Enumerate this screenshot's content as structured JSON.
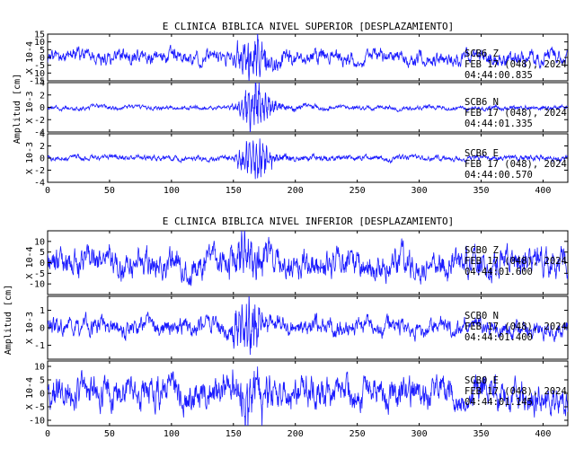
{
  "chart_data": [
    {
      "type": "line",
      "title": "E CLINICA BIBLICA NIVEL SUPERIOR [DESPLAZAMIENTO]",
      "ylabel": "Amplitud [cm]",
      "xlim": [
        0,
        420
      ],
      "x_ticks": [
        0,
        50,
        100,
        150,
        200,
        250,
        300,
        350,
        400
      ],
      "panels": [
        {
          "scale_label": "X 10-4",
          "ylim": [
            -15,
            15
          ],
          "y_ticks": [
            -15,
            -10,
            -5,
            0,
            5,
            10,
            15
          ],
          "info": [
            "SCB6   Z",
            "FEB 17 (048), 2024",
            "04:44:00.835"
          ],
          "series": {
            "duration": 420,
            "base_noise": 3.2,
            "burst_center": 165,
            "burst_width": 10,
            "burst_amp": 11,
            "coda_amp": 4
          }
        },
        {
          "scale_label": "X 10-3",
          "ylim": [
            -4,
            4
          ],
          "y_ticks": [
            -4,
            -2,
            0,
            2,
            4
          ],
          "info": [
            "SCB6   N",
            "FEB 17 (048), 2024",
            "04:44:01.335"
          ],
          "series": {
            "duration": 420,
            "base_noise": 0.25,
            "burst_center": 167,
            "burst_width": 8,
            "burst_amp": 3.4,
            "coda_amp": 0.9
          }
        },
        {
          "scale_label": "X 10-3",
          "ylim": [
            -4,
            4
          ],
          "y_ticks": [
            -4,
            -2,
            0,
            2,
            4
          ],
          "info": [
            "SCB6   E",
            "FEB 17 (048), 2024",
            "04:44:00.570"
          ],
          "series": {
            "duration": 420,
            "base_noise": 0.3,
            "burst_center": 167,
            "burst_width": 8,
            "burst_amp": 3.6,
            "coda_amp": 1.0
          }
        }
      ]
    },
    {
      "type": "line",
      "title": "E CLINICA BIBLICA NIVEL INFERIOR [DESPLAZAMIENTO]",
      "ylabel": "Amplitud [cm]",
      "xlim": [
        0,
        420
      ],
      "x_ticks": [
        0,
        50,
        100,
        150,
        200,
        250,
        300,
        350,
        400
      ],
      "panels": [
        {
          "scale_label": "X 10-4",
          "ylim": [
            -15,
            15
          ],
          "y_ticks": [
            -10,
            -5,
            0,
            5,
            10
          ],
          "info": [
            "SCB0   Z",
            "FEB 17 (048), 2024",
            "04:44:01.600"
          ],
          "series": {
            "duration": 420,
            "base_noise": 4.5,
            "burst_center": 162,
            "burst_width": 10,
            "burst_amp": 7,
            "coda_amp": 2
          }
        },
        {
          "scale_label": "X 10-3",
          "ylim": [
            -1.8,
            1.8
          ],
          "y_ticks": [
            -1,
            0,
            1
          ],
          "info": [
            "SCB0   N",
            "FEB 17 (048), 2024",
            "04:44:01.400"
          ],
          "series": {
            "duration": 420,
            "base_noise": 0.35,
            "burst_center": 162,
            "burst_width": 9,
            "burst_amp": 1.3,
            "coda_amp": 0.4
          }
        },
        {
          "scale_label": "X 10-4",
          "ylim": [
            -12,
            12
          ],
          "y_ticks": [
            -10,
            -5,
            0,
            5,
            10
          ],
          "info": [
            "SCB0   E",
            "FEB 17 (048), 2024",
            "04:44:01.145"
          ],
          "series": {
            "duration": 420,
            "base_noise": 4.0,
            "burst_center": 163,
            "burst_width": 10,
            "burst_amp": 6,
            "coda_amp": 2
          }
        }
      ]
    }
  ],
  "colors": {
    "trace": "#1a1aff",
    "frame": "#000000",
    "background": "#ffffff"
  }
}
